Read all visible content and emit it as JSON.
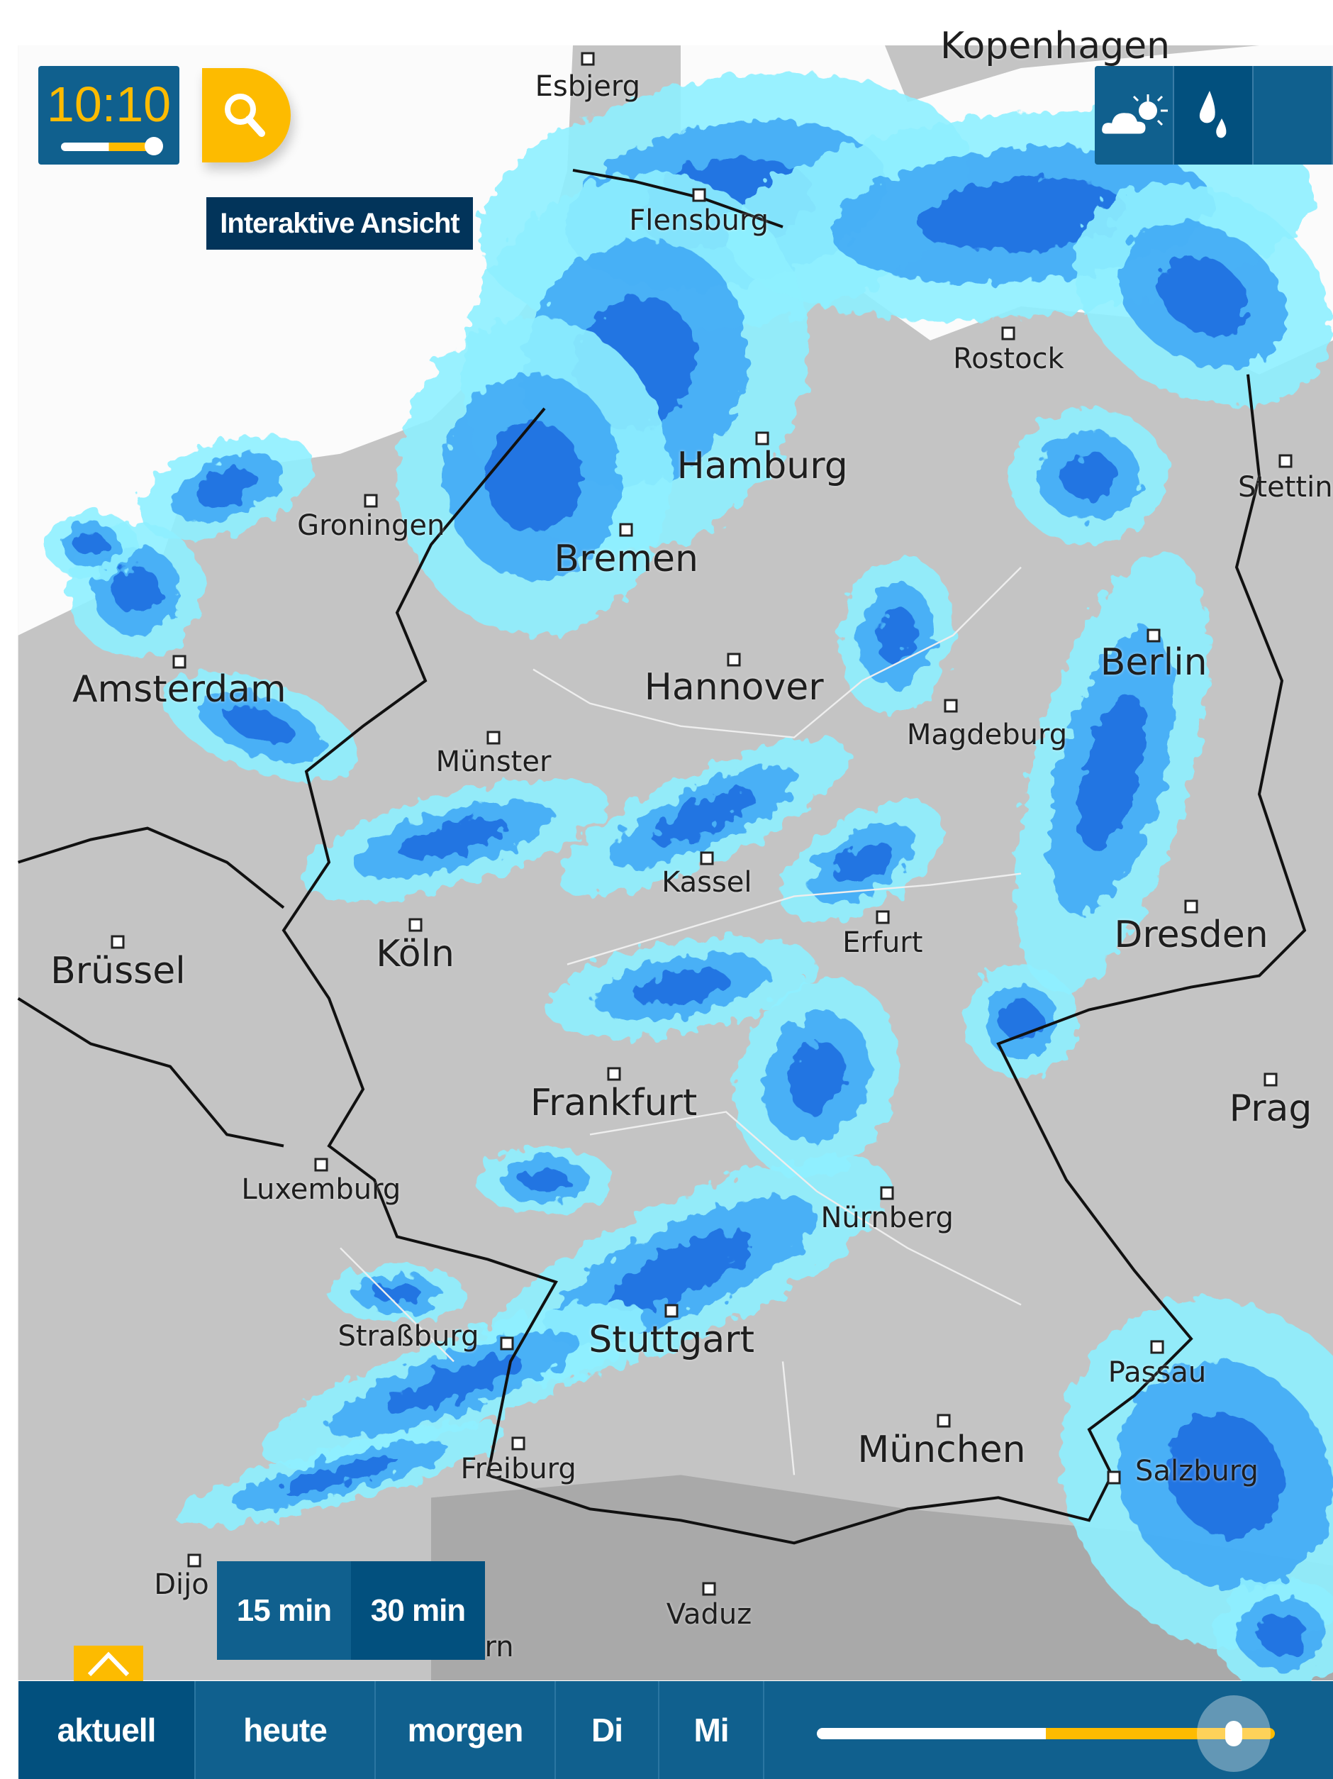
{
  "time_display": {
    "time": "10:10",
    "progress_percent": 85
  },
  "search_button": {
    "icon": "search-icon",
    "color": "#fdbb00"
  },
  "tooltip": {
    "text": "Interaktive Ansicht"
  },
  "layer_buttons": [
    {
      "icon": "partly-cloudy-icon",
      "active": false
    },
    {
      "icon": "raindrops-icon",
      "active": true
    }
  ],
  "interval_buttons": [
    {
      "label": "15 min",
      "active": false
    },
    {
      "label": "30 min",
      "active": true
    }
  ],
  "bottom_tabs": [
    {
      "label": "aktuell",
      "active": true
    },
    {
      "label": "heute",
      "active": false
    },
    {
      "label": "morgen",
      "active": false
    },
    {
      "label": "Di",
      "active": false
    },
    {
      "label": "Mi",
      "active": false
    }
  ],
  "timeline": {
    "progress_percent": 88
  },
  "colors": {
    "panel": "#10608e",
    "panel_active": "#02507e",
    "accent": "#fdbb00",
    "tooltip": "#02345a",
    "rain_light": "#8ef0ff",
    "rain_mid": "#40aaf5",
    "rain_heavy": "#1f6fe0"
  },
  "cities": [
    {
      "name": "Kopenhagen"
    },
    {
      "name": "Esbjerg"
    },
    {
      "name": "Flensburg"
    },
    {
      "name": "Rostock"
    },
    {
      "name": "Hamburg"
    },
    {
      "name": "Stettin"
    },
    {
      "name": "Groningen"
    },
    {
      "name": "Bremen"
    },
    {
      "name": "Berlin"
    },
    {
      "name": "Amsterdam"
    },
    {
      "name": "Hannover"
    },
    {
      "name": "Magdeburg"
    },
    {
      "name": "Münster"
    },
    {
      "name": "Kassel"
    },
    {
      "name": "Dresden"
    },
    {
      "name": "Erfurt"
    },
    {
      "name": "Brüssel"
    },
    {
      "name": "Köln"
    },
    {
      "name": "Prag"
    },
    {
      "name": "Frankfurt"
    },
    {
      "name": "Luxemburg"
    },
    {
      "name": "Nürnberg"
    },
    {
      "name": "Passau"
    },
    {
      "name": "Straßburg"
    },
    {
      "name": "Stuttgart"
    },
    {
      "name": "München"
    },
    {
      "name": "Salzburg"
    },
    {
      "name": "Freiburg"
    },
    {
      "name": "Dijo"
    },
    {
      "name": "Vaduz"
    },
    {
      "name": "rn"
    }
  ]
}
